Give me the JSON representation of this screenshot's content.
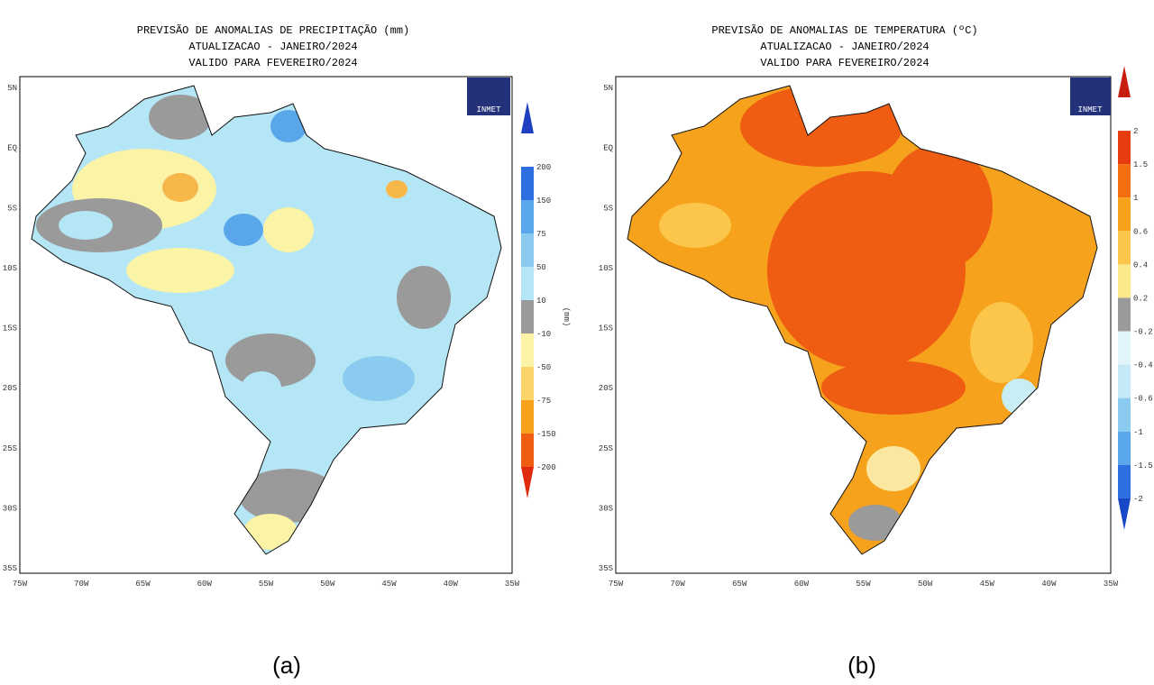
{
  "maps": [
    {
      "title": [
        "PREVISÃO DE ANOMALIAS DE PRECIPITAÇÃO (mm)",
        "ATUALIZACAO - JANEIRO/2024",
        "VALIDO PARA FEVEREIRO/2024"
      ],
      "lat_labels": [
        "5N",
        "EQ",
        "5S",
        "10S",
        "15S",
        "20S",
        "25S",
        "30S",
        "35S"
      ],
      "lon_labels": [
        "75W",
        "70W",
        "65W",
        "60W",
        "55W",
        "50W",
        "45W",
        "40W",
        "35W"
      ],
      "colorbar": [
        "200",
        "150",
        "75",
        "50",
        "10",
        "-10",
        "-50",
        "-75",
        "-150",
        "-200"
      ],
      "unit": "(mm)",
      "logo": "INMET",
      "caption": "(a)"
    },
    {
      "title": [
        "PREVISÃO DE ANOMALIAS DE TEMPERATURA (ºC)",
        "ATUALIZACAO - JANEIRO/2024",
        "VALIDO PARA FEVEREIRO/2024"
      ],
      "lat_labels": [
        "5N",
        "EQ",
        "5S",
        "10S",
        "15S",
        "20S",
        "25S",
        "30S",
        "35S"
      ],
      "lon_labels": [
        "75W",
        "70W",
        "65W",
        "60W",
        "55W",
        "50W",
        "45W",
        "40W",
        "35W"
      ],
      "colorbar": [
        "2",
        "1.5",
        "1",
        "0.6",
        "0.4",
        "0.2",
        "-0.2",
        "-0.4",
        "-0.6",
        "-1",
        "-1.5",
        "-2"
      ],
      "logo": "INMET",
      "caption": "(b)"
    }
  ]
}
